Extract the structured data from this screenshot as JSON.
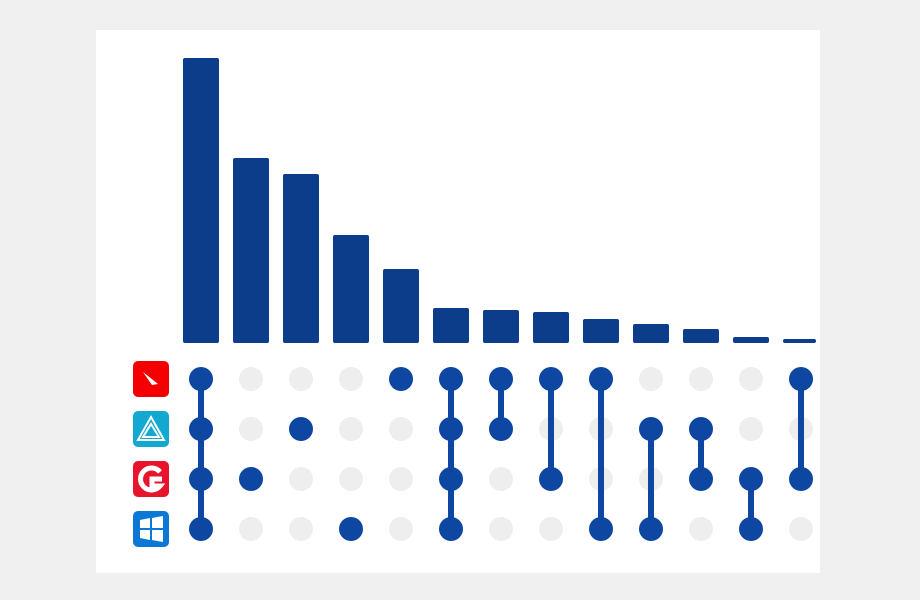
{
  "chart_data": {
    "type": "upset",
    "values": [
      285,
      185,
      169,
      108,
      74,
      35,
      33,
      31,
      24,
      19,
      14,
      6,
      4
    ],
    "ylim": [
      0,
      300
    ],
    "color": "#0b3d8a",
    "dot_color": "#0d47a1",
    "empty_dot_color": "#eeeeee",
    "membership": [
      [
        1,
        1,
        1,
        1
      ],
      [
        0,
        0,
        1,
        0
      ],
      [
        0,
        1,
        0,
        0
      ],
      [
        0,
        0,
        0,
        1
      ],
      [
        1,
        0,
        0,
        0
      ],
      [
        1,
        1,
        1,
        1
      ],
      [
        1,
        1,
        0,
        0
      ],
      [
        1,
        0,
        1,
        0
      ],
      [
        1,
        0,
        0,
        1
      ],
      [
        0,
        1,
        0,
        1
      ],
      [
        0,
        1,
        1,
        0
      ],
      [
        0,
        0,
        1,
        1
      ],
      [
        1,
        0,
        1,
        0
      ]
    ]
  }
}
